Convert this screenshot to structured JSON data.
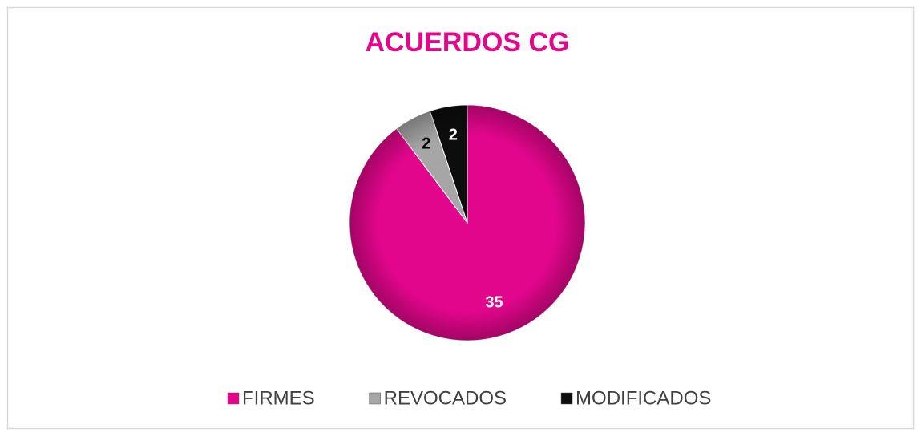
{
  "chart_data": {
    "type": "pie",
    "title": "ACUERDOS CG",
    "categories": [
      "FIRMES",
      "REVOCADOS",
      "MODIFICADOS"
    ],
    "values": [
      35,
      2,
      2
    ],
    "colors": [
      "#e2068c",
      "#a6a6a6",
      "#0d0d0d"
    ],
    "legend": "bottom"
  }
}
